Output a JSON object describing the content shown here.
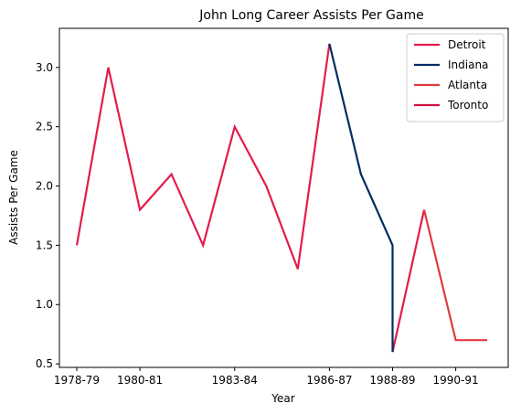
{
  "chart_data": {
    "type": "line",
    "title": "John Long  Career Assists Per Game",
    "xlabel": "Year",
    "ylabel": "Assists Per Game",
    "x_tick_labels": [
      "1978-79",
      "1980-81",
      "1983-84",
      "1986-87",
      "1988-89",
      "1990-91"
    ],
    "y_ticks": [
      0.5,
      1.0,
      1.5,
      2.0,
      2.5,
      3.0
    ],
    "y_tick_labels": [
      "0.5",
      "1.0",
      "1.5",
      "2.0",
      "2.5",
      "3.0"
    ],
    "ylim": [
      0.47,
      3.33
    ],
    "grid": false,
    "legend_position": "top-right",
    "series": [
      {
        "name": "Detroit",
        "color": "#e31c4a",
        "points": [
          {
            "x": "1978-79",
            "y": 1.5
          },
          {
            "x": "1979-80",
            "y": 3.0
          },
          {
            "x": "1980-81",
            "y": 1.8
          },
          {
            "x": "1981-82",
            "y": 2.1
          },
          {
            "x": "1982-83",
            "y": 1.5
          },
          {
            "x": "1983-84",
            "y": 2.5
          },
          {
            "x": "1984-85",
            "y": 2.0
          },
          {
            "x": "1985-86",
            "y": 1.3
          },
          {
            "x": "1986-87",
            "y": 3.2
          }
        ]
      },
      {
        "name": "Indiana",
        "color": "#002d62",
        "points": [
          {
            "x": "1986-87",
            "y": 3.2
          },
          {
            "x": "1987-88",
            "y": 2.1
          },
          {
            "x": "1988-89",
            "y": 1.5
          },
          {
            "x": "1988-89",
            "y": 0.6
          }
        ]
      },
      {
        "name": "Atlanta",
        "color": "#e03a3e",
        "points": [
          {
            "x": "1989-90",
            "y": 1.8
          },
          {
            "x": "1990-91",
            "y": 0.7
          },
          {
            "x": "1991-92",
            "y": 0.7
          }
        ]
      },
      {
        "name": "Toronto",
        "color": "#ce1141",
        "points": []
      }
    ],
    "connector_segments": [
      {
        "color": "#e31c4a",
        "points": [
          {
            "x": "1988-89",
            "y": 0.6
          },
          {
            "x": "1989-90",
            "y": 1.8
          }
        ]
      }
    ]
  }
}
